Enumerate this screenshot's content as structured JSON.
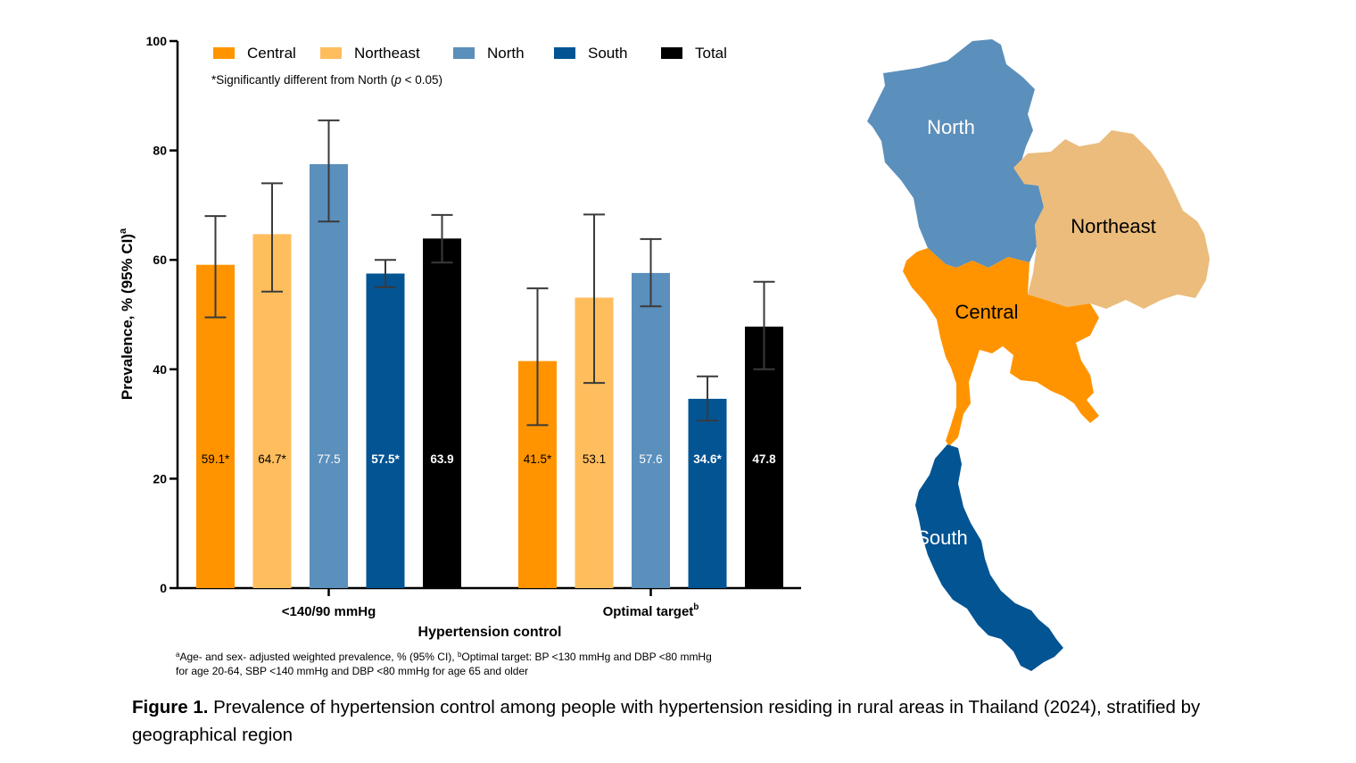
{
  "chart_data": {
    "type": "bar",
    "ylabel": "Prevalence, % (95% CI)",
    "ylabel_sup": "a",
    "xlabel": "Hypertension control",
    "ylim": [
      0,
      100
    ],
    "yticks": [
      0,
      20,
      40,
      60,
      80,
      100
    ],
    "categories": [
      {
        "label": "<140/90 mmHg",
        "sup": ""
      },
      {
        "label": "Optimal target",
        "sup": "b"
      }
    ],
    "series": [
      {
        "name": "Central",
        "color": "#FF9400",
        "label_color": "#000000",
        "values": [
          59.1,
          41.5
        ],
        "ci_low": [
          49.5,
          29.8
        ],
        "ci_high": [
          68.0,
          54.8
        ],
        "labels": [
          "59.1*",
          "41.5*"
        ]
      },
      {
        "name": "Northeast",
        "color": "#FFBE5E",
        "label_color": "#000000",
        "values": [
          64.7,
          53.1
        ],
        "ci_low": [
          54.2,
          37.5
        ],
        "ci_high": [
          74.0,
          68.3
        ],
        "labels": [
          "64.7*",
          "53.1"
        ]
      },
      {
        "name": "North",
        "color": "#5B8FBC",
        "label_color": "#FFFFFF",
        "values": [
          77.5,
          57.6
        ],
        "ci_low": [
          67.0,
          51.5
        ],
        "ci_high": [
          85.5,
          63.8
        ],
        "labels": [
          "77.5",
          "57.6"
        ]
      },
      {
        "name": "South",
        "color": "#035493",
        "label_color": "#FFFFFF",
        "values": [
          57.5,
          34.6
        ],
        "ci_low": [
          55.0,
          30.6
        ],
        "ci_high": [
          60.0,
          38.7
        ],
        "labels": [
          "57.5*",
          "34.6*"
        ]
      },
      {
        "name": "Total",
        "color": "#000000",
        "label_color": "#FFFFFF",
        "values": [
          63.9,
          47.8
        ],
        "ci_low": [
          59.5,
          40.0
        ],
        "ci_high": [
          68.2,
          56.0
        ],
        "labels": [
          "63.9",
          "47.8"
        ]
      }
    ],
    "annotation": {
      "pre": "*Significantly different from North (",
      "italic": "p",
      "post": " < 0.05)"
    },
    "footnote": {
      "a_sup": "a",
      "a_text": "Age- and sex- adjusted weighted prevalence, % (95% CI), ",
      "b_sup": "b",
      "b_text": "Optimal target: BP <130 mmHg and DBP <80 mmHg",
      "line2": "for age 20-64, SBP <140 mmHg and DBP <80 mmHg for age 65 and older"
    },
    "legend_position": "top"
  },
  "map": {
    "regions": [
      {
        "key": "north",
        "name": "North",
        "color": "#5B8FBC",
        "text_color": "#FFFFFF"
      },
      {
        "key": "northeast",
        "name": "Northeast",
        "color": "#EBBC7C",
        "text_color": "#000000"
      },
      {
        "key": "central",
        "name": "Central",
        "color": "#FF9400",
        "text_color": "#000000"
      },
      {
        "key": "south",
        "name": "South",
        "color": "#035493",
        "text_color": "#FFFFFF"
      }
    ]
  },
  "caption": {
    "bold": "Figure 1.",
    "text": " Prevalence of hypertension control among people with hypertension residing in rural areas in Thailand (2024), stratified by geographical region"
  }
}
